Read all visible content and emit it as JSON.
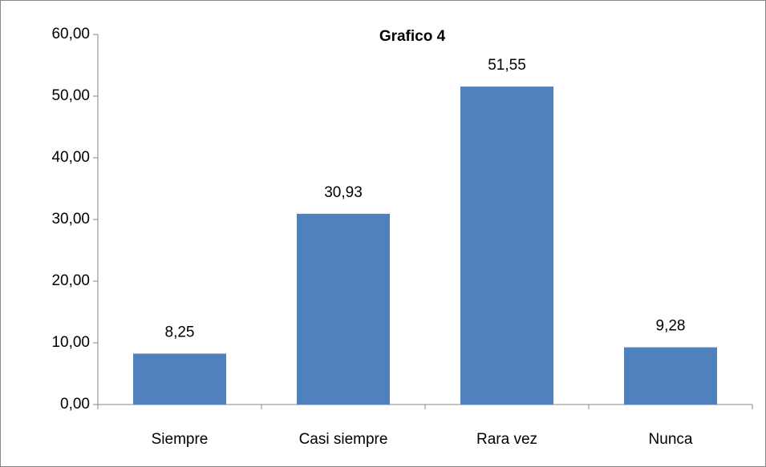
{
  "chart_data": {
    "type": "bar",
    "title": "Grafico 4",
    "categories": [
      "Siempre",
      "Casi siempre",
      "Rara vez",
      "Nunca"
    ],
    "values": [
      8.25,
      30.93,
      51.55,
      9.28
    ],
    "value_labels": [
      "8,25",
      "30,93",
      "51,55",
      "9,28"
    ],
    "color": "#4f81bd",
    "ylim": [
      0,
      60
    ],
    "yticks": [
      {
        "value": 0,
        "label": "0,00"
      },
      {
        "value": 10,
        "label": "10,00"
      },
      {
        "value": 20,
        "label": "20,00"
      },
      {
        "value": 30,
        "label": "30,00"
      },
      {
        "value": 40,
        "label": "40,00"
      },
      {
        "value": 50,
        "label": "50,00"
      },
      {
        "value": 60,
        "label": "60,00"
      }
    ],
    "grid": false
  }
}
